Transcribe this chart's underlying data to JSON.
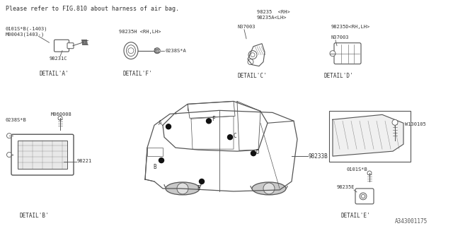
{
  "bg_color": "#ffffff",
  "line_color": "#555555",
  "text_color": "#333333",
  "title_text": "Please refer to FIG.810 about harness of air bag.",
  "part_number_bottom_right": "A343001175",
  "details": {
    "A": {
      "label": "DETAIL'A'",
      "part1": "0101S*B(-1403)",
      "part2": "M00043(1403-)",
      "part3": "98231C"
    },
    "B": {
      "label": "DETAIL'B'",
      "part1": "0238S*B",
      "part2": "M060008",
      "part3": "98221"
    },
    "C": {
      "label": "DETAIL'C'",
      "part1": "98235  <RH>",
      "part2": "98235A<LH>",
      "part3": "N37003"
    },
    "D": {
      "label": "DETAIL'D'",
      "part1": "98235D<RH,LH>",
      "part2": "N37003"
    },
    "E": {
      "label": "DETAIL'E'",
      "part1": "0101S*B",
      "part2": "98235E"
    },
    "F": {
      "label": "DETAIL'F'",
      "part1": "98235H <RH,LH>",
      "part2": "0238S*A"
    }
  },
  "car_label": "98233B",
  "bracket_label": "W130105"
}
